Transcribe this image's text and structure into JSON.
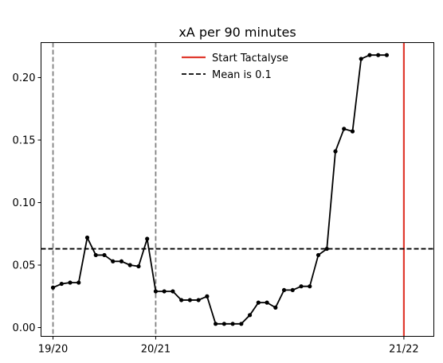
{
  "chart_data": {
    "type": "line",
    "title": "xA per 90 minutes",
    "xlabel": "",
    "ylabel": "",
    "ylim": [
      -0.007,
      0.228
    ],
    "xlim": [
      -1.4,
      44.5
    ],
    "grid": false,
    "legend_placement": "top-center",
    "x_ticks": [
      {
        "x": 0,
        "label": "19/20"
      },
      {
        "x": 12,
        "label": "20/21"
      },
      {
        "x": 41,
        "label": "21/22"
      }
    ],
    "y_ticks": [
      {
        "y": 0.0,
        "label": "0.00"
      },
      {
        "y": 0.05,
        "label": "0.05"
      },
      {
        "y": 0.1,
        "label": "0.10"
      },
      {
        "y": 0.15,
        "label": "0.15"
      },
      {
        "y": 0.2,
        "label": "0.20"
      }
    ],
    "season_lines": [
      0,
      12
    ],
    "start_tactalyse_x": 41,
    "mean_line_y": 0.063,
    "legend": [
      {
        "label": "Start Tactalyse",
        "style": "solid",
        "color": "#e03a2f"
      },
      {
        "label": "Mean is 0.1",
        "style": "dashed",
        "color": "#000000"
      }
    ],
    "series": [
      {
        "color": "#000000",
        "x": [
          0,
          1,
          2,
          3,
          4,
          5,
          6,
          7,
          8,
          9,
          10,
          11,
          12,
          13,
          14,
          15,
          16,
          17,
          18,
          19,
          20,
          21,
          22,
          23,
          24,
          25,
          26,
          27,
          28,
          29,
          30,
          31,
          32,
          33,
          34,
          35,
          36,
          37,
          38,
          39
        ],
        "values": [
          0.032,
          0.035,
          0.036,
          0.036,
          0.072,
          0.058,
          0.058,
          0.053,
          0.053,
          0.05,
          0.049,
          0.071,
          0.029,
          0.029,
          0.029,
          0.022,
          0.022,
          0.022,
          0.025,
          0.003,
          0.003,
          0.003,
          0.003,
          0.01,
          0.02,
          0.02,
          0.016,
          0.03,
          0.03,
          0.033,
          0.033,
          0.058,
          0.063,
          0.141,
          0.159,
          0.157,
          0.215,
          0.218,
          0.218,
          0.218
        ]
      }
    ]
  }
}
